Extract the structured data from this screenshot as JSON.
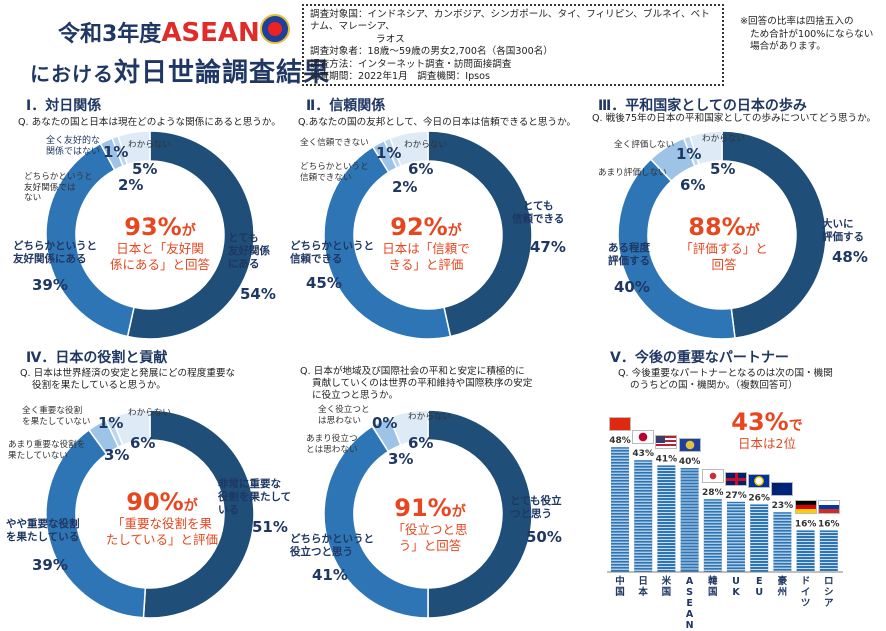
{
  "header": {
    "title_line1_prefix": "令和3年度",
    "title_line1_accent": "ASEAN",
    "title_line2_prefix": "における",
    "title_line2_main": "対日世論調査結果",
    "info_lines": [
      "調査対象国：インドネシア、カンボジア、シンガポール、タイ、フィリピン、ブルネイ、ベトナム、マレーシア、",
      "ラオス",
      "調査対象者：18歳～59歳の男女2,700名（各国300名）",
      "調査方法：インターネット調査・訪問面接調査",
      "調査期間：2022年1月　調査機関：Ipsos"
    ],
    "note_lines": [
      "※回答の比率は四捨五入の",
      "ため合計が100%にならない",
      "場合があります。"
    ]
  },
  "sections": {
    "s1": {
      "title": "Ⅰ．対日関係",
      "question": "Q. あなたの国と日本は現在どのような関係にあると思うか。",
      "center_big": "93%",
      "center_ga": "が",
      "center_sub": [
        "日本と「友好関",
        "係にある」と回答"
      ],
      "labels": {
        "l54": [
          "とても",
          "友好関係",
          "にある"
        ],
        "v54": "54%",
        "l39": [
          "どちらかというと",
          "友好関係にある"
        ],
        "v39": "39%",
        "l2": [
          "どちらかというと",
          "友好関係では",
          "ない"
        ],
        "v2": "2%",
        "l1": [
          "全く友好的な",
          "関係ではない"
        ],
        "v1": "1%",
        "l5": [
          "わからない"
        ],
        "v5": "5%"
      }
    },
    "s2": {
      "title": "Ⅱ．信頼関係",
      "question": "Q.あなたの国の友邦として、今日の日本は信頼できると思うか。",
      "center_big": "92%",
      "center_ga": "が",
      "center_sub": [
        "日本は「信頼で",
        "きる」と評価"
      ],
      "labels": {
        "l47": [
          "とても",
          "信頼できる"
        ],
        "v47": "47%",
        "l45": [
          "どちらかというと",
          "信頼できる"
        ],
        "v45": "45%",
        "l2": [
          "どちらかというと",
          "信頼できない"
        ],
        "v2": "2%",
        "l1": [
          "全く信頼できない"
        ],
        "v1": "1%",
        "l6": [
          "わからない"
        ],
        "v6": "6%"
      }
    },
    "s3": {
      "title": "Ⅲ．平和国家としての日本の歩み",
      "question": "Q. 戦後75年の日本の平和国家としての歩みについてどう思うか。",
      "center_big": "88%",
      "center_ga": "が",
      "center_sub": [
        "「評価する」と",
        "回答"
      ],
      "labels": {
        "l48": [
          "大いに",
          "評価する"
        ],
        "v48": "48%",
        "l40": [
          "ある程度",
          "評価する"
        ],
        "v40": "40%",
        "l6": [
          "あまり評価しない"
        ],
        "v6": "6%",
        "l1": [
          "全く評価しない"
        ],
        "v1": "1%",
        "l5": [
          "わからない"
        ],
        "v5": "5%"
      }
    },
    "s4": {
      "title": "Ⅳ．日本の役割と貢献",
      "question": [
        "Q. 日本は世界経済の安定と発展にどの程度重要な",
        "役割を果たしていると思うか。"
      ],
      "center_big": "90%",
      "center_ga": "が",
      "center_sub": [
        "「重要な役割を果",
        "たしている」と評価"
      ],
      "labels": {
        "l51": [
          "非常に重要な",
          "役割を果たして",
          "いる"
        ],
        "v51": "51%",
        "l39": [
          "やや重要な役割",
          "を果たしている"
        ],
        "v39": "39%",
        "l3": [
          "あまり重要な役割を",
          "果たしていない"
        ],
        "v3": "3%",
        "l1": [
          "全く重要な役割",
          "を果たしていない"
        ],
        "v1": "1%",
        "l6": [
          "わからない"
        ],
        "v6": "6%"
      }
    },
    "s5": {
      "question": [
        "Q. 日本が地域及び国際社会の平和と安定に積極的に",
        "貢献していくのは世界の平和維持や国際秩序の安定",
        "に役立つと思うか。"
      ],
      "center_big": "91%",
      "center_ga": "が",
      "center_sub": [
        "「役立つと思",
        "う」と回答"
      ],
      "labels": {
        "l50": [
          "とても役立",
          "つと思う"
        ],
        "v50": "50%",
        "l41": [
          "どちらかというと",
          "役立つと思う"
        ],
        "v41": "41%",
        "l3": [
          "あまり役立つ",
          "とは思わない"
        ],
        "v3": "3%",
        "l0": [
          "全く役立つと",
          "は思わない"
        ],
        "v0": "0%",
        "l6": [
          "わからない"
        ],
        "v6": "6%"
      }
    },
    "s6": {
      "title": "Ⅴ．今後の重要なパートナー",
      "question": [
        "Q. 今後重要なパートナーとなるのは次の国・機関",
        "のうちどの国・機関か。（複数回答可）"
      ],
      "callout_big": "43%",
      "callout_de": "で",
      "callout_sub": "日本は2位"
    }
  },
  "colors": {
    "dark": "#1f4e79",
    "mid": "#2e75b6",
    "light": "#9dc3e6",
    "pale": "#bdd7ee",
    "faint": "#deebf7",
    "accent": "#e8461f"
  },
  "chart_data": [
    {
      "type": "pie",
      "title": "Ⅰ．対日関係",
      "categories": [
        "とても友好関係にある",
        "どちらかというと友好関係にある",
        "どちらかというと友好関係ではない",
        "全く友好的な関係ではない",
        "わからない"
      ],
      "values": [
        54,
        39,
        2,
        1,
        5
      ]
    },
    {
      "type": "pie",
      "title": "Ⅱ．信頼関係",
      "categories": [
        "とても信頼できる",
        "どちらかというと信頼できる",
        "どちらかというと信頼できない",
        "全く信頼できない",
        "わからない"
      ],
      "values": [
        47,
        45,
        2,
        1,
        6
      ]
    },
    {
      "type": "pie",
      "title": "Ⅲ．平和国家としての日本の歩み",
      "categories": [
        "大いに評価する",
        "ある程度評価する",
        "あまり評価しない",
        "全く評価しない",
        "わからない"
      ],
      "values": [
        48,
        40,
        6,
        1,
        5
      ]
    },
    {
      "type": "pie",
      "title": "Ⅳ．日本の役割と貢献",
      "categories": [
        "非常に重要な役割を果たしている",
        "やや重要な役割を果たしている",
        "あまり重要な役割を果たしていない",
        "全く重要な役割を果たしていない",
        "わからない"
      ],
      "values": [
        51,
        39,
        3,
        1,
        6
      ]
    },
    {
      "type": "pie",
      "categories": [
        "とても役立つと思う",
        "どちらかというと役立つと思う",
        "あまり役立つとは思わない",
        "全く役立つとは思わない",
        "わからない"
      ],
      "values": [
        50,
        41,
        3,
        0,
        6
      ]
    },
    {
      "type": "bar",
      "title": "Ⅴ．今後の重要なパートナー",
      "categories": [
        "中国",
        "日本",
        "米国",
        "ASEAN",
        "韓国",
        "UK",
        "EU",
        "豪州",
        "ドイツ",
        "ロシア"
      ],
      "values": [
        48,
        43,
        41,
        40,
        28,
        27,
        26,
        23,
        16,
        16
      ],
      "value_labels": [
        "48%",
        "43%",
        "41%",
        "40%",
        "28%",
        "27%",
        "26%",
        "23%",
        "16%",
        "16%"
      ],
      "ylim": [
        0,
        50
      ]
    }
  ]
}
